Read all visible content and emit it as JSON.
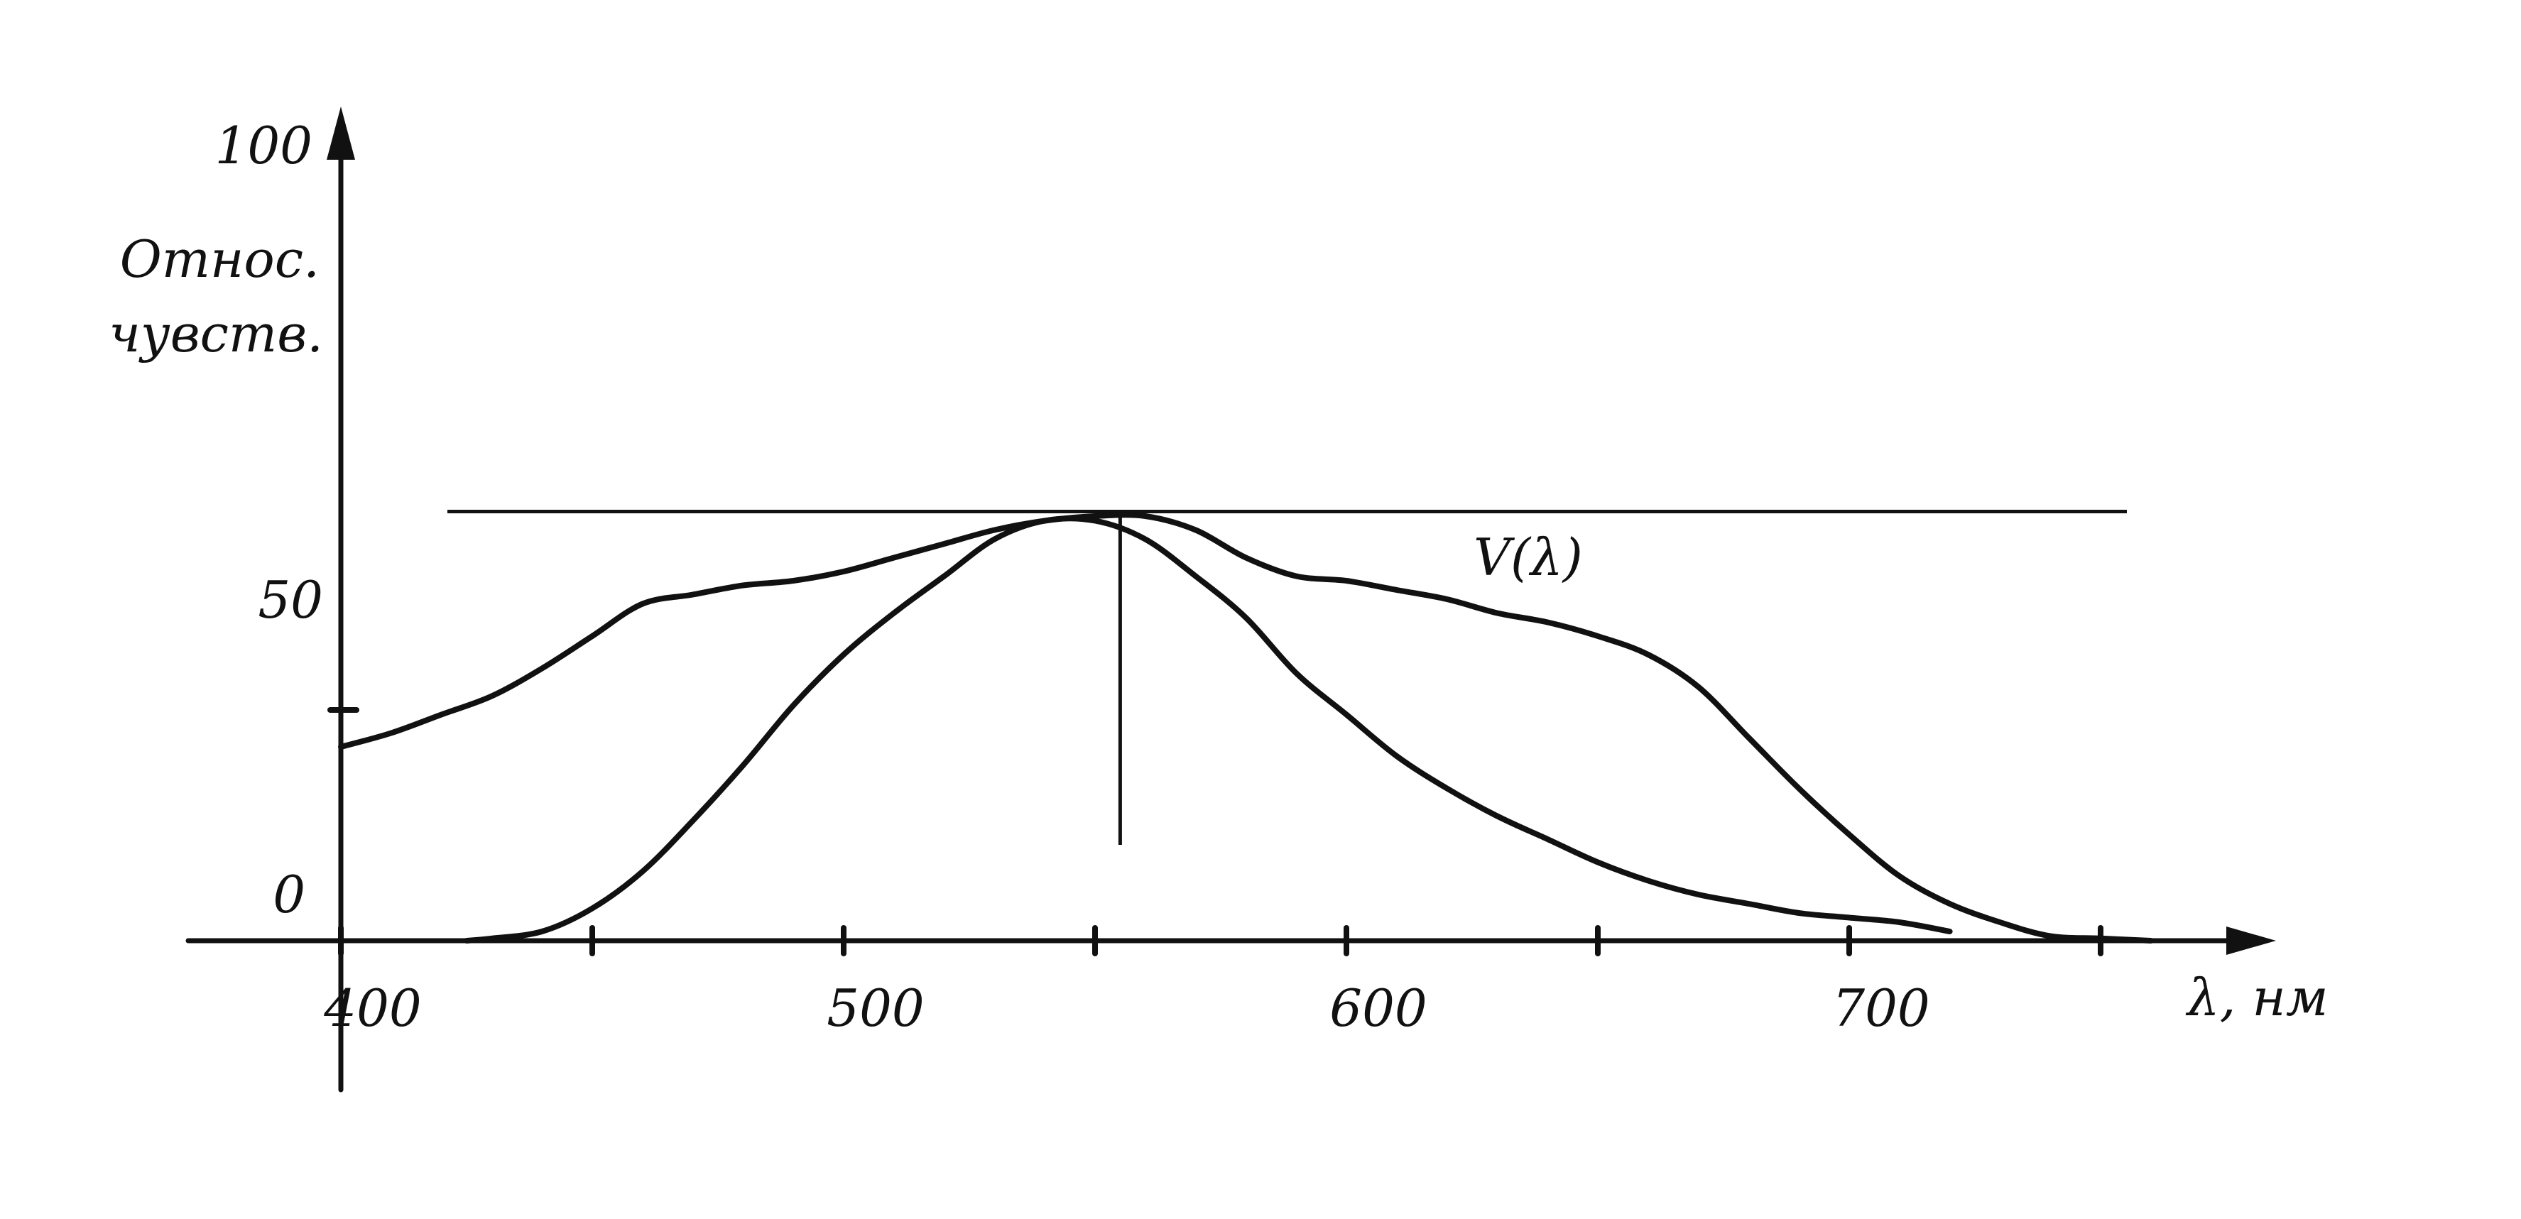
{
  "chart_data": {
    "type": "line",
    "title": "",
    "ylabel_lines": [
      "Относ.",
      "чувств."
    ],
    "xlabel": "λ, нм",
    "ylim": [
      0,
      100
    ],
    "xlim": [
      400,
      780
    ],
    "x_tick_labels": [
      "400",
      "500",
      "600",
      "700"
    ],
    "x_tick_values": [
      400,
      450,
      500,
      550,
      600,
      650,
      700,
      750
    ],
    "y_tick_labels": [
      "100",
      "50",
      "0"
    ],
    "y_tick_values": [
      100,
      50,
      0
    ],
    "reference_line": {
      "y": 93
    },
    "peak_marker": {
      "x": 555
    },
    "annotations": [
      {
        "text": "V(λ)"
      }
    ],
    "series": [
      {
        "id": "wide",
        "x": [
          400,
          410,
          420,
          430,
          440,
          450,
          460,
          470,
          480,
          490,
          500,
          510,
          520,
          530,
          540,
          550,
          560,
          570,
          580,
          590,
          600,
          610,
          620,
          630,
          640,
          650,
          660,
          670,
          680,
          690,
          700,
          710,
          720,
          730,
          740,
          750,
          760
        ],
        "y": [
          42,
          45,
          49,
          53,
          59,
          66,
          73,
          75,
          77,
          78,
          80,
          83,
          86,
          89,
          91,
          92,
          92,
          89,
          83,
          79,
          78,
          76,
          74,
          71,
          69,
          66,
          62,
          55,
          44,
          33,
          23,
          14,
          8,
          4,
          1,
          0.5,
          0
        ]
      },
      {
        "id": "V",
        "x": [
          425,
          430,
          440,
          450,
          460,
          470,
          480,
          490,
          500,
          510,
          520,
          530,
          540,
          550,
          560,
          570,
          580,
          590,
          600,
          610,
          620,
          630,
          640,
          650,
          660,
          670,
          680,
          690,
          700,
          710,
          720
        ],
        "y": [
          0,
          0.5,
          2,
          7,
          15,
          26,
          38,
          51,
          62,
          71,
          79,
          87,
          91,
          91,
          87,
          79,
          70,
          58,
          49,
          40,
          33,
          27,
          22,
          17,
          13,
          10,
          8,
          6,
          5,
          4,
          2
        ]
      }
    ]
  }
}
